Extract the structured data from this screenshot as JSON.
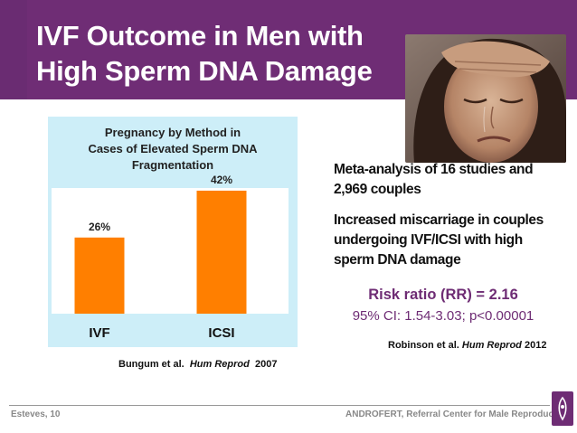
{
  "slide": {
    "title_line1": "IVF Outcome in Men with",
    "title_line2": "High Sperm DNA Damage",
    "photo": {
      "icon": "distressed-woman-photo"
    },
    "chart_citation": {
      "authors": "Bungum et al.",
      "journal": "Hum Reprod",
      "year": "2007"
    },
    "meta_line1": "Meta-analysis of 16 studies and",
    "meta_line2": "2,969 couples",
    "miscarriage_line1": "Increased miscarriage in couples",
    "miscarriage_line2": "undergoing IVF/ICSI with high",
    "miscarriage_line3": "sperm DNA damage",
    "risk_ratio": "Risk ratio (RR) = 2.16",
    "confidence_interval": "95% CI: 1.54-3.03; p<0.00001",
    "robinson_citation": {
      "authors": "Robinson et al.",
      "journal": "Hum Reprod",
      "year": "2012"
    },
    "footer_left": "Esteves, 10",
    "footer_right": "ANDROFERT, Referral Center for Male Reproduction"
  },
  "colors": {
    "title_purple": "#6f2d75",
    "accent_purple": "#6e2c74",
    "bar_orange": "#ff7f00",
    "chart_bg": "#cdeef8",
    "plot_bg": "#ffffff"
  },
  "chart_data": {
    "type": "bar",
    "title_lines": [
      "Pregnancy by Method in",
      "Cases of Elevated Sperm DNA",
      "Fragmentation"
    ],
    "categories": [
      "IVF",
      "ICSI"
    ],
    "values": [
      26,
      42
    ],
    "value_labels": [
      "26%",
      "42%"
    ],
    "unit": "%",
    "ylim": [
      0,
      50
    ],
    "xlabel": "",
    "ylabel": "",
    "grid": false,
    "legend": "none"
  }
}
